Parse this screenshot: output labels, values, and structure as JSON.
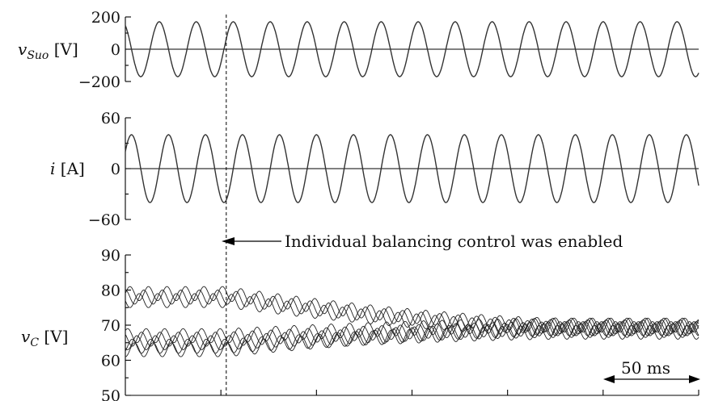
{
  "chart_data": [
    {
      "type": "line",
      "ylabel": "v_Suo [V]",
      "ylim": [
        -200,
        200
      ],
      "yticks": [
        200,
        0,
        -200
      ],
      "ytick_labels": [
        "200",
        "0",
        "−200"
      ],
      "series": [
        {
          "amplitude": 170,
          "periods": 15.5,
          "phase_deg": 120
        }
      ]
    },
    {
      "type": "line",
      "ylabel": "i [A]",
      "ylim": [
        -60,
        60
      ],
      "yticks": [
        60,
        0,
        -60
      ],
      "ytick_labels": [
        "60",
        "0",
        "−60"
      ],
      "series": [
        {
          "amplitude": 40,
          "periods": 15.5,
          "phase_deg": 30
        }
      ]
    },
    {
      "type": "line",
      "ylabel": "v_C [V]",
      "ylim": [
        50,
        90
      ],
      "yticks": [
        90,
        80,
        70,
        60,
        50
      ],
      "ytick_labels": [
        "90",
        "80",
        "70",
        "60",
        "50"
      ],
      "series": [
        {
          "start": 79,
          "end": 70,
          "ripple": 2,
          "phase_deg": 0
        },
        {
          "start": 78,
          "end": 69.5,
          "ripple": 2,
          "phase_deg": 90
        },
        {
          "start": 77,
          "end": 69,
          "ripple": 2,
          "phase_deg": 180
        },
        {
          "start": 67,
          "end": 70,
          "ripple": 2,
          "phase_deg": 45
        },
        {
          "start": 66,
          "end": 69,
          "ripple": 2,
          "phase_deg": 135
        },
        {
          "start": 65,
          "end": 68.5,
          "ripple": 2,
          "phase_deg": 225
        },
        {
          "start": 64,
          "end": 68,
          "ripple": 2,
          "phase_deg": 315
        },
        {
          "start": 63,
          "end": 69,
          "ripple": 2,
          "phase_deg": 270
        }
      ]
    }
  ],
  "annotation": {
    "text": "Individual balancing control was enabled",
    "t_fraction": 0.176
  },
  "scale_bar": {
    "label": "50 ms",
    "duration_fraction": 0.178
  }
}
